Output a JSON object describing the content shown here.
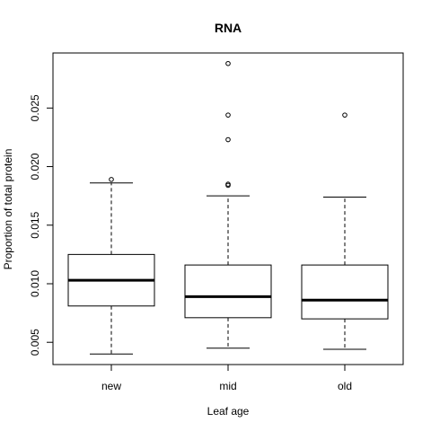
{
  "chart_data": {
    "type": "boxplot",
    "title": "RNA",
    "xlabel": "Leaf age",
    "ylabel": "Proportion of total protein",
    "categories": [
      "new",
      "mid",
      "old"
    ],
    "yticks": [
      0.005,
      0.01,
      0.015,
      0.02,
      0.025
    ],
    "ytick_labels": [
      "0.005",
      "0.010",
      "0.015",
      "0.020",
      "0.025"
    ],
    "ylim": [
      0.0031,
      0.0297
    ],
    "grid": false,
    "legend": "none",
    "boxes": [
      {
        "category": "new",
        "whisker_low": 0.004,
        "q1": 0.0081,
        "median": 0.0103,
        "q3": 0.0125,
        "whisker_high": 0.0186,
        "outliers": [
          0.0189
        ]
      },
      {
        "category": "mid",
        "whisker_low": 0.0045,
        "q1": 0.0071,
        "median": 0.0089,
        "q3": 0.0116,
        "whisker_high": 0.0175,
        "outliers": [
          0.0184,
          0.0185,
          0.0223,
          0.0244,
          0.0288
        ]
      },
      {
        "category": "old",
        "whisker_low": 0.0044,
        "q1": 0.007,
        "median": 0.0086,
        "q3": 0.0116,
        "whisker_high": 0.0174,
        "outliers": [
          0.0244
        ]
      }
    ]
  }
}
